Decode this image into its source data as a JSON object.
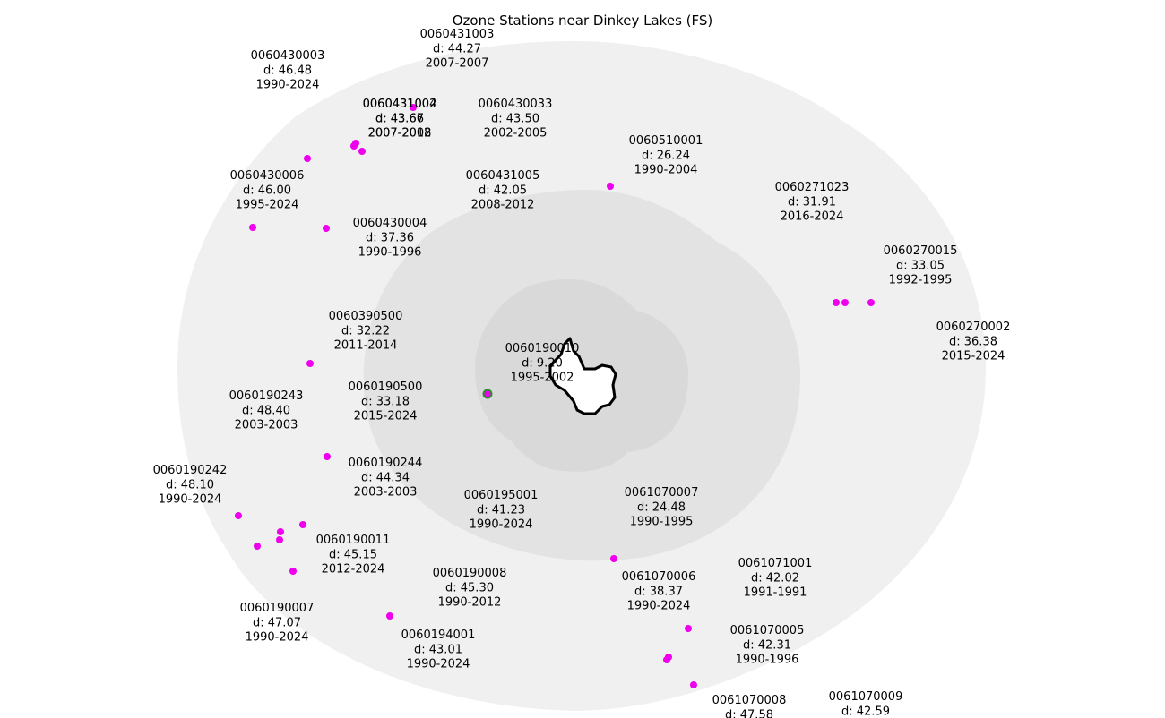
{
  "map": {
    "title": "Ozone Stations near Dinkey Lakes (FS)",
    "buffer_colors": [
      "#f0f0f0",
      "#e3e3e3",
      "#d9d9d9"
    ],
    "area_fill": "#ffffff",
    "area_stroke": "#000000",
    "station_color": "#ee00ee",
    "highlight_ring_color": "#2e8b2e",
    "stations": [
      {
        "id": "0060431003",
        "dist": "d: 44.27",
        "years": "2007-2007"
      },
      {
        "id": "0060430003",
        "dist": "d: 46.48",
        "years": "1990-2024"
      },
      {
        "id": "0060431004",
        "dist": "d: 43.66",
        "years": "2007-2012"
      },
      {
        "id": "0060431002",
        "dist": "d: 43.67",
        "years": "2007-2008"
      },
      {
        "id": "0060430033",
        "dist": "d: 43.50",
        "years": "2002-2005"
      },
      {
        "id": "0060510001",
        "dist": "d: 26.24",
        "years": "1990-2004"
      },
      {
        "id": "0060430006",
        "dist": "d: 46.00",
        "years": "1995-2024"
      },
      {
        "id": "0060431005",
        "dist": "d: 42.05",
        "years": "2008-2012"
      },
      {
        "id": "0060271023",
        "dist": "d: 31.91",
        "years": "2016-2024"
      },
      {
        "id": "0060430004",
        "dist": "d: 37.36",
        "years": "1990-1996"
      },
      {
        "id": "0060270015",
        "dist": "d: 33.05",
        "years": "1992-1995"
      },
      {
        "id": "0060390500",
        "dist": "d: 32.22",
        "years": "2011-2014"
      },
      {
        "id": "0060270002",
        "dist": "d: 36.38",
        "years": "2015-2024"
      },
      {
        "id": "0060190010",
        "dist": "d: 9.20",
        "years": "1995-2002"
      },
      {
        "id": "0060190500",
        "dist": "d: 33.18",
        "years": "2015-2024"
      },
      {
        "id": "0060190243",
        "dist": "d: 48.40",
        "years": "2003-2003"
      },
      {
        "id": "0060190244",
        "dist": "d: 44.34",
        "years": "2003-2003"
      },
      {
        "id": "0060190242",
        "dist": "d: 48.10",
        "years": "1990-2024"
      },
      {
        "id": "0060195001",
        "dist": "d: 41.23",
        "years": "1990-2024"
      },
      {
        "id": "0061070007",
        "dist": "d: 24.48",
        "years": "1990-1995"
      },
      {
        "id": "0060190011",
        "dist": "d: 45.15",
        "years": "2012-2024"
      },
      {
        "id": "0061071001",
        "dist": "d: 42.02",
        "years": "1991-1991"
      },
      {
        "id": "0060190008",
        "dist": "d: 45.30",
        "years": "1990-2012"
      },
      {
        "id": "0061070006",
        "dist": "d: 38.37",
        "years": "1990-2024"
      },
      {
        "id": "0060190007",
        "dist": "d: 47.07",
        "years": "1990-2024"
      },
      {
        "id": "0061070005",
        "dist": "d: 42.31",
        "years": "1990-1996"
      },
      {
        "id": "0060194001",
        "dist": "d: 43.01",
        "years": "1990-2024"
      },
      {
        "id": "0061070008",
        "dist": "d: 47.58",
        "years": ""
      },
      {
        "id": "0061070009",
        "dist": "d: 42.59",
        "years": ""
      }
    ]
  }
}
